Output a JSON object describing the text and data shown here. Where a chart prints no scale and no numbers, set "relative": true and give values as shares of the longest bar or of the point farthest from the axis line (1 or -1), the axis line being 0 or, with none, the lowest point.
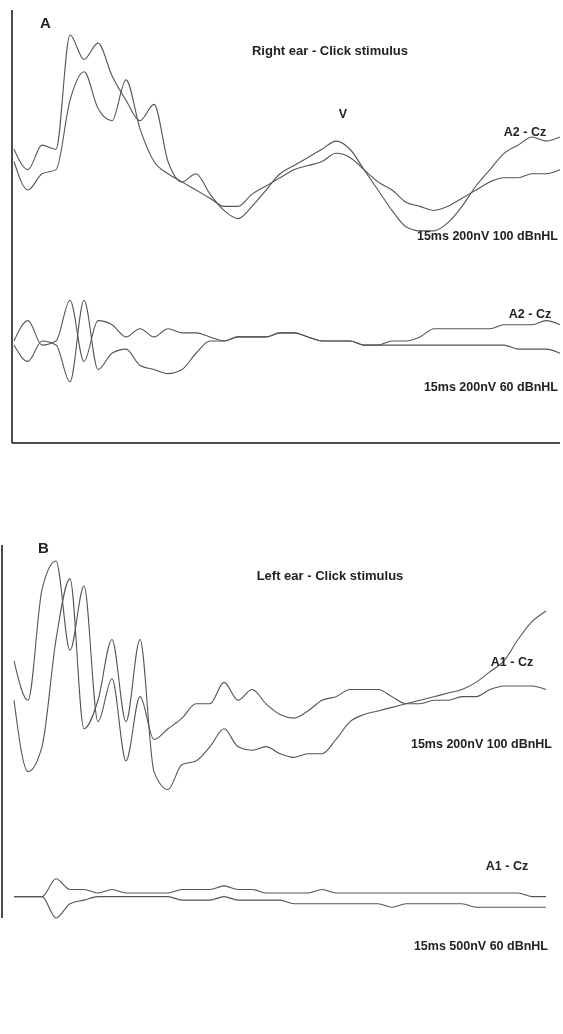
{
  "chart_data": [
    {
      "type": "line",
      "title": "Right ear  - Click stimulus",
      "relative": true,
      "annotations": [
        "A",
        "V",
        "A2 - Cz",
        "15ms 200nV 100 dBnHL",
        "A2 - Cz",
        "15ms 200nV 60 dBnHL"
      ],
      "categories": [
        null,
        null,
        null,
        null,
        null,
        null,
        null,
        null,
        null,
        null,
        null,
        null,
        null,
        null,
        null,
        null,
        null,
        null,
        null,
        null,
        null,
        null,
        null,
        null,
        null,
        null,
        null,
        null,
        null,
        null,
        null,
        null,
        null,
        null,
        null,
        null,
        null,
        null,
        null,
        null
      ],
      "series": [
        {
          "color": "#555555",
          "values": [
            0.72,
            0.67,
            0.73,
            0.72,
            1.0,
            0.94,
            0.98,
            0.9,
            0.84,
            0.79,
            0.83,
            0.69,
            0.64,
            0.66,
            0.61,
            0.57,
            0.55,
            0.58,
            0.62,
            0.66,
            0.68,
            0.7,
            0.72,
            0.74,
            0.72,
            0.67,
            0.62,
            0.57,
            0.53,
            0.52,
            0.52,
            0.54,
            0.58,
            0.63,
            0.67,
            0.71,
            0.73,
            0.75,
            0.74,
            0.75
          ]
        },
        {
          "color": "#555555",
          "values": [
            0.69,
            0.62,
            0.66,
            0.67,
            0.84,
            0.91,
            0.82,
            0.79,
            0.89,
            0.77,
            0.69,
            0.66,
            0.64,
            0.62,
            0.6,
            0.58,
            0.58,
            0.61,
            0.63,
            0.65,
            0.67,
            0.68,
            0.69,
            0.71,
            0.7,
            0.67,
            0.64,
            0.62,
            0.59,
            0.58,
            0.57,
            0.58,
            0.6,
            0.62,
            0.64,
            0.65,
            0.65,
            0.66,
            0.66,
            0.67
          ]
        },
        {
          "color": "#555555",
          "values": [
            0.25,
            0.3,
            0.24,
            0.25,
            0.35,
            0.2,
            0.3,
            0.29,
            0.26,
            0.28,
            0.26,
            0.28,
            0.27,
            0.27,
            0.26,
            0.25,
            0.26,
            0.26,
            0.26,
            0.27,
            0.27,
            0.26,
            0.25,
            0.25,
            0.25,
            0.24,
            0.24,
            0.25,
            0.25,
            0.26,
            0.28,
            0.28,
            0.28,
            0.28,
            0.28,
            0.29,
            0.29,
            0.29,
            0.3,
            0.29
          ]
        },
        {
          "color": "#555555",
          "values": [
            0.24,
            0.2,
            0.25,
            0.24,
            0.15,
            0.35,
            0.18,
            0.22,
            0.23,
            0.19,
            0.18,
            0.17,
            0.18,
            0.22,
            0.25,
            0.25,
            0.26,
            0.26,
            0.26,
            0.27,
            0.27,
            0.26,
            0.25,
            0.25,
            0.25,
            0.24,
            0.24,
            0.24,
            0.24,
            0.24,
            0.24,
            0.24,
            0.24,
            0.24,
            0.24,
            0.24,
            0.23,
            0.23,
            0.23,
            0.22
          ]
        }
      ]
    },
    {
      "type": "line",
      "title": "Left ear  - Click stimulus",
      "relative": true,
      "annotations": [
        "B",
        "A1 - Cz",
        "15ms 200nV 100 dBnHL",
        "A1 - Cz",
        "15ms 500nV 60 dBnHL"
      ],
      "categories": [
        null,
        null,
        null,
        null,
        null,
        null,
        null,
        null,
        null,
        null,
        null,
        null,
        null,
        null,
        null,
        null,
        null,
        null,
        null,
        null,
        null,
        null,
        null,
        null,
        null,
        null,
        null,
        null,
        null,
        null,
        null,
        null,
        null,
        null,
        null,
        null,
        null,
        null,
        null
      ],
      "series": [
        {
          "color": "#555555",
          "values": [
            0.61,
            0.41,
            0.48,
            0.78,
            0.95,
            0.53,
            0.61,
            0.78,
            0.55,
            0.78,
            0.41,
            0.36,
            0.43,
            0.44,
            0.48,
            0.53,
            0.48,
            0.47,
            0.48,
            0.46,
            0.45,
            0.46,
            0.46,
            0.5,
            0.55,
            0.57,
            0.58,
            0.59,
            0.6,
            0.61,
            0.62,
            0.63,
            0.64,
            0.66,
            0.69,
            0.72,
            0.78,
            0.83,
            0.86
          ]
        },
        {
          "color": "#555555",
          "values": [
            0.72,
            0.61,
            0.92,
            1.0,
            0.75,
            0.93,
            0.55,
            0.67,
            0.44,
            0.62,
            0.5,
            0.53,
            0.56,
            0.6,
            0.6,
            0.66,
            0.61,
            0.64,
            0.6,
            0.57,
            0.56,
            0.58,
            0.61,
            0.62,
            0.64,
            0.64,
            0.64,
            0.62,
            0.6,
            0.6,
            0.61,
            0.61,
            0.62,
            0.62,
            0.64,
            0.65,
            0.65,
            0.65,
            0.64
          ]
        },
        {
          "color": "#555555",
          "values": [
            0.06,
            0.06,
            0.06,
            0.11,
            0.08,
            0.08,
            0.07,
            0.08,
            0.07,
            0.07,
            0.07,
            0.07,
            0.08,
            0.08,
            0.08,
            0.09,
            0.08,
            0.08,
            0.07,
            0.07,
            0.07,
            0.07,
            0.08,
            0.07,
            0.07,
            0.07,
            0.07,
            0.07,
            0.07,
            0.07,
            0.07,
            0.07,
            0.07,
            0.07,
            0.07,
            0.07,
            0.07,
            0.06,
            0.06
          ]
        },
        {
          "color": "#555555",
          "values": [
            0.06,
            0.06,
            0.06,
            0,
            0.04,
            0.05,
            0.06,
            0.06,
            0.06,
            0.06,
            0.06,
            0.06,
            0.05,
            0.05,
            0.05,
            0.06,
            0.05,
            0.05,
            0.05,
            0.05,
            0.04,
            0.04,
            0.04,
            0.04,
            0.04,
            0.04,
            0.04,
            0.03,
            0.04,
            0.04,
            0.04,
            0.04,
            0.04,
            0.03,
            0.03,
            0.03,
            0.03,
            0.03,
            0.03
          ]
        }
      ]
    }
  ]
}
